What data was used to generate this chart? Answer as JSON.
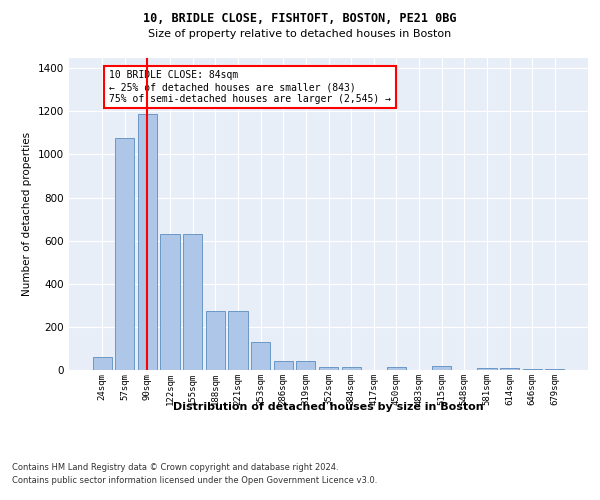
{
  "title1": "10, BRIDLE CLOSE, FISHTOFT, BOSTON, PE21 0BG",
  "title2": "Size of property relative to detached houses in Boston",
  "xlabel": "Distribution of detached houses by size in Boston",
  "ylabel": "Number of detached properties",
  "categories": [
    "24sqm",
    "57sqm",
    "90sqm",
    "122sqm",
    "155sqm",
    "188sqm",
    "221sqm",
    "253sqm",
    "286sqm",
    "319sqm",
    "352sqm",
    "384sqm",
    "417sqm",
    "450sqm",
    "483sqm",
    "515sqm",
    "548sqm",
    "581sqm",
    "614sqm",
    "646sqm",
    "679sqm"
  ],
  "values": [
    60,
    1075,
    1190,
    630,
    630,
    275,
    275,
    130,
    40,
    40,
    15,
    15,
    0,
    15,
    0,
    20,
    0,
    10,
    10,
    5,
    5
  ],
  "bar_color": "#aec6e8",
  "bar_edge_color": "#5b8dc0",
  "red_line_x": 2,
  "annotation_text": "10 BRIDLE CLOSE: 84sqm\n← 25% of detached houses are smaller (843)\n75% of semi-detached houses are larger (2,545) →",
  "annotation_box_color": "white",
  "annotation_box_edge": "red",
  "ylim": [
    0,
    1450
  ],
  "yticks": [
    0,
    200,
    400,
    600,
    800,
    1000,
    1200,
    1400
  ],
  "footer1": "Contains HM Land Registry data © Crown copyright and database right 2024.",
  "footer2": "Contains public sector information licensed under the Open Government Licence v3.0.",
  "axes_background": "#e8eef8",
  "grid_color": "white"
}
